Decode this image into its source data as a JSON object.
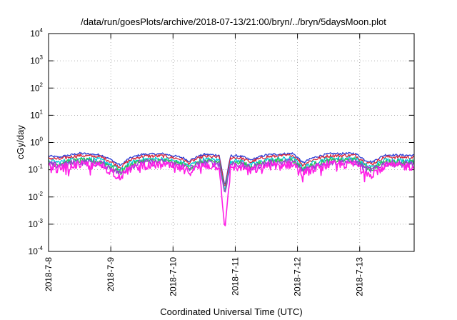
{
  "chart_data": {
    "type": "line",
    "title": "/data/run/goesPlots/archive/2018-07-13/21:00/bryn/../bryn/5daysMoon.plot",
    "xlabel": "Coordinated Universal Time (UTC)",
    "ylabel": "cGy/day",
    "yscale": "log",
    "ylim": [
      0.0001,
      10000
    ],
    "y_ticks": [
      {
        "value": 0.0001,
        "base": "10",
        "exp": "-4"
      },
      {
        "value": 0.001,
        "base": "10",
        "exp": "-3"
      },
      {
        "value": 0.01,
        "base": "10",
        "exp": "-2"
      },
      {
        "value": 0.1,
        "base": "10",
        "exp": "-1"
      },
      {
        "value": 1,
        "base": "10",
        "exp": "0"
      },
      {
        "value": 10,
        "base": "10",
        "exp": "1"
      },
      {
        "value": 100,
        "base": "10",
        "exp": "2"
      },
      {
        "value": 1000,
        "base": "10",
        "exp": "3"
      },
      {
        "value": 10000,
        "base": "10",
        "exp": "4"
      }
    ],
    "x_range": [
      "2018-07-08T00:00",
      "2018-07-13T21:00"
    ],
    "x_ticks": [
      "2018-7-8",
      "2018-7-9",
      "2018-7-10",
      "2018-7-11",
      "2018-7-12",
      "2018-7-13"
    ],
    "grid": true,
    "series_colors": [
      "#2a3bd6",
      "#d6263b",
      "#00c8d8",
      "#2ec24a",
      "#9b3bd6",
      "#ff1ee6"
    ],
    "baseline_levels": [
      0.32,
      0.27,
      0.21,
      0.18,
      0.16,
      0.13
    ],
    "anchors": [
      {
        "t": "2018-07-08T00:00",
        "mult": 1.0
      },
      {
        "t": "2018-07-08T04:00",
        "mult": 0.9
      },
      {
        "t": "2018-07-08T12:00",
        "mult": 1.25
      },
      {
        "t": "2018-07-08T20:00",
        "mult": 1.1
      },
      {
        "t": "2018-07-09T02:00",
        "mult": 0.55
      },
      {
        "t": "2018-07-09T04:00",
        "mult": 0.45
      },
      {
        "t": "2018-07-09T07:00",
        "mult": 0.8
      },
      {
        "t": "2018-07-09T12:00",
        "mult": 1.15
      },
      {
        "t": "2018-07-09T20:00",
        "mult": 1.2
      },
      {
        "t": "2018-07-10T04:00",
        "mult": 0.85
      },
      {
        "t": "2018-07-10T06:00",
        "mult": 0.65
      },
      {
        "t": "2018-07-10T12:00",
        "mult": 1.15
      },
      {
        "t": "2018-07-10T19:00",
        "mult": 1.05
      },
      {
        "t": "2018-07-11T02:00",
        "mult": 1.0
      },
      {
        "t": "2018-07-11T06:00",
        "mult": 0.7
      },
      {
        "t": "2018-07-11T12:00",
        "mult": 1.1
      },
      {
        "t": "2018-07-11T22:00",
        "mult": 1.25
      },
      {
        "t": "2018-07-12T02:00",
        "mult": 0.55
      },
      {
        "t": "2018-07-12T06:00",
        "mult": 0.85
      },
      {
        "t": "2018-07-12T12:00",
        "mult": 1.2
      },
      {
        "t": "2018-07-12T22:00",
        "mult": 1.25
      },
      {
        "t": "2018-07-13T02:00",
        "mult": 0.7
      },
      {
        "t": "2018-07-13T05:00",
        "mult": 0.6
      },
      {
        "t": "2018-07-13T10:00",
        "mult": 1.1
      },
      {
        "t": "2018-07-13T21:00",
        "mult": 1.05
      }
    ],
    "spike": {
      "t": "2018-07-10T20:00",
      "min_value": 0.0006
    }
  }
}
